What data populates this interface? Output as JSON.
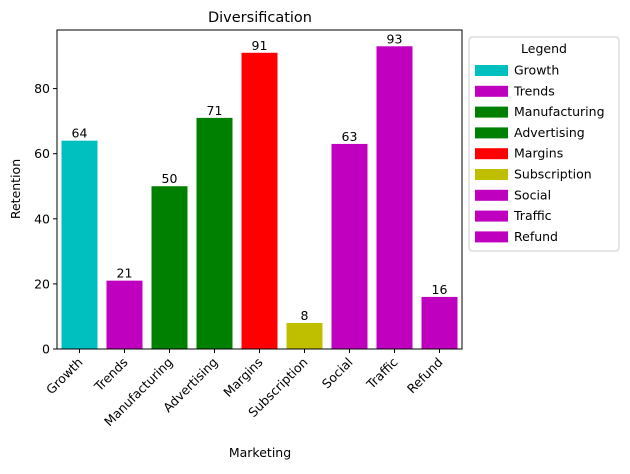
{
  "chart_data": {
    "type": "bar",
    "title": "Diversification",
    "xlabel": "Marketing",
    "ylabel": "Retention",
    "ylim": [
      0,
      98
    ],
    "yticks": [
      0,
      20,
      40,
      60,
      80
    ],
    "grid": false,
    "categories": [
      "Growth",
      "Trends",
      "Manufacturing",
      "Advertising",
      "Margins",
      "Subscription",
      "Social",
      "Traffic",
      "Refund"
    ],
    "values": [
      64,
      21,
      50,
      71,
      91,
      8,
      63,
      93,
      16
    ],
    "colors": [
      "#00bfbf",
      "#bf00bf",
      "#008000",
      "#008000",
      "#ff0000",
      "#bfbf00",
      "#bf00bf",
      "#bf00bf",
      "#bf00bf"
    ],
    "data_labels": true,
    "legend": {
      "title": "Legend",
      "placement": "outside-right-top",
      "entries": [
        {
          "label": "Growth",
          "color": "#00bfbf"
        },
        {
          "label": "Trends",
          "color": "#bf00bf"
        },
        {
          "label": "Manufacturing",
          "color": "#008000"
        },
        {
          "label": "Advertising",
          "color": "#008000"
        },
        {
          "label": "Margins",
          "color": "#ff0000"
        },
        {
          "label": "Subscription",
          "color": "#bfbf00"
        },
        {
          "label": "Social",
          "color": "#bf00bf"
        },
        {
          "label": "Traffic",
          "color": "#bf00bf"
        },
        {
          "label": "Refund",
          "color": "#bf00bf"
        }
      ]
    }
  }
}
